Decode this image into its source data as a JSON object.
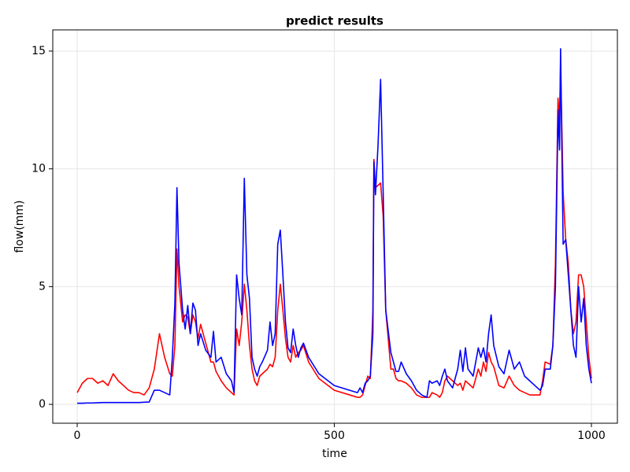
{
  "chart_data": {
    "type": "line",
    "title": "predict results",
    "x_label": "time",
    "y_label": "flow(mm)",
    "x": [
      0,
      10,
      20,
      30,
      40,
      50,
      60,
      70,
      80,
      90,
      100,
      110,
      120,
      130,
      140,
      150,
      160,
      170,
      180,
      185,
      190,
      194,
      198,
      205,
      210,
      215,
      220,
      225,
      230,
      235,
      240,
      250,
      260,
      265,
      270,
      280,
      290,
      300,
      305,
      310,
      315,
      320,
      325,
      330,
      335,
      340,
      345,
      350,
      355,
      360,
      370,
      375,
      380,
      385,
      390,
      395,
      400,
      405,
      410,
      415,
      420,
      425,
      430,
      435,
      440,
      450,
      470,
      500,
      530,
      545,
      550,
      555,
      560,
      565,
      570,
      575,
      577,
      580,
      585,
      590,
      595,
      600,
      610,
      615,
      620,
      625,
      630,
      640,
      650,
      660,
      670,
      680,
      685,
      690,
      700,
      705,
      710,
      715,
      720,
      730,
      740,
      745,
      750,
      755,
      760,
      770,
      780,
      785,
      790,
      795,
      800,
      805,
      810,
      820,
      830,
      840,
      850,
      860,
      870,
      880,
      890,
      900,
      905,
      910,
      920,
      925,
      930,
      935,
      938,
      940,
      945,
      950,
      955,
      960,
      965,
      970,
      975,
      980,
      985,
      990,
      995,
      1000
    ],
    "series": [
      {
        "color": "#ff0000",
        "values": [
          0.5,
          0.9,
          1.1,
          1.1,
          0.9,
          1.0,
          0.8,
          1.3,
          1.0,
          0.8,
          0.6,
          0.5,
          0.5,
          0.4,
          0.7,
          1.5,
          3.0,
          2.0,
          1.3,
          1.2,
          2.5,
          6.6,
          5.0,
          3.5,
          3.8,
          3.7,
          3.0,
          3.8,
          3.5,
          2.8,
          3.4,
          2.6,
          1.8,
          1.8,
          1.4,
          1.0,
          0.7,
          0.5,
          0.4,
          3.2,
          2.5,
          3.5,
          5.1,
          4.0,
          2.5,
          1.5,
          1.0,
          0.8,
          1.2,
          1.3,
          1.5,
          1.7,
          1.6,
          2.0,
          4.0,
          5.1,
          4.0,
          2.8,
          2.0,
          1.8,
          2.5,
          2.0,
          2.2,
          2.3,
          2.5,
          1.8,
          1.1,
          0.6,
          0.4,
          0.3,
          0.3,
          0.4,
          0.8,
          1.2,
          1.1,
          4.0,
          10.4,
          9.2,
          9.3,
          9.4,
          8.0,
          4.0,
          1.5,
          1.5,
          1.1,
          1.0,
          1.0,
          0.9,
          0.7,
          0.4,
          0.3,
          0.3,
          0.3,
          0.5,
          0.4,
          0.3,
          0.5,
          1.0,
          1.2,
          1.0,
          0.8,
          0.9,
          0.6,
          1.0,
          0.9,
          0.7,
          1.5,
          1.2,
          1.8,
          1.4,
          2.2,
          1.8,
          1.6,
          0.8,
          0.7,
          1.2,
          0.8,
          0.6,
          0.5,
          0.4,
          0.4,
          0.4,
          1.0,
          1.8,
          1.7,
          2.5,
          6.0,
          13.0,
          12.0,
          14.5,
          9.0,
          7.0,
          6.0,
          4.0,
          3.0,
          3.5,
          5.5,
          5.5,
          5.0,
          3.5,
          2.0,
          1.1
        ]
      },
      {
        "color": "#0000ff",
        "values": [
          0.05,
          0.05,
          0.06,
          0.06,
          0.07,
          0.08,
          0.08,
          0.08,
          0.08,
          0.08,
          0.08,
          0.08,
          0.08,
          0.09,
          0.1,
          0.6,
          0.6,
          0.5,
          0.4,
          2.0,
          4.3,
          9.2,
          6.0,
          4.0,
          3.2,
          4.2,
          3.0,
          4.3,
          4.0,
          2.5,
          3.0,
          2.3,
          2.0,
          3.1,
          1.8,
          2.0,
          1.3,
          1.0,
          0.5,
          5.5,
          4.5,
          3.8,
          9.6,
          5.5,
          4.5,
          2.0,
          1.5,
          1.2,
          1.6,
          1.8,
          2.3,
          3.5,
          2.5,
          3.0,
          6.8,
          7.4,
          5.5,
          3.5,
          2.4,
          2.2,
          3.2,
          2.5,
          2.0,
          2.4,
          2.6,
          2.0,
          1.3,
          0.8,
          0.6,
          0.5,
          0.7,
          0.5,
          0.9,
          1.0,
          1.2,
          3.0,
          10.3,
          8.9,
          11.0,
          13.8,
          9.0,
          4.0,
          2.2,
          1.8,
          1.4,
          1.4,
          1.8,
          1.3,
          1.0,
          0.6,
          0.4,
          0.3,
          1.0,
          0.9,
          1.0,
          0.8,
          1.2,
          1.5,
          1.0,
          0.7,
          1.5,
          2.3,
          1.4,
          2.4,
          1.5,
          1.2,
          2.4,
          2.0,
          2.4,
          1.8,
          3.0,
          3.8,
          2.5,
          1.6,
          1.3,
          2.3,
          1.5,
          1.8,
          1.2,
          1.0,
          0.8,
          0.6,
          0.8,
          1.5,
          1.5,
          2.5,
          5.0,
          12.5,
          10.8,
          15.1,
          6.8,
          7.0,
          5.5,
          4.0,
          2.5,
          2.0,
          5.0,
          3.5,
          4.5,
          2.5,
          1.5,
          0.9
        ]
      }
    ],
    "xlim": [
      -47.5,
      1050.5
    ],
    "ylim": [
      -0.8,
      15.9
    ],
    "xticks": [
      0,
      500,
      1000
    ],
    "yticks": [
      0,
      5,
      10,
      15
    ],
    "grid": true
  }
}
